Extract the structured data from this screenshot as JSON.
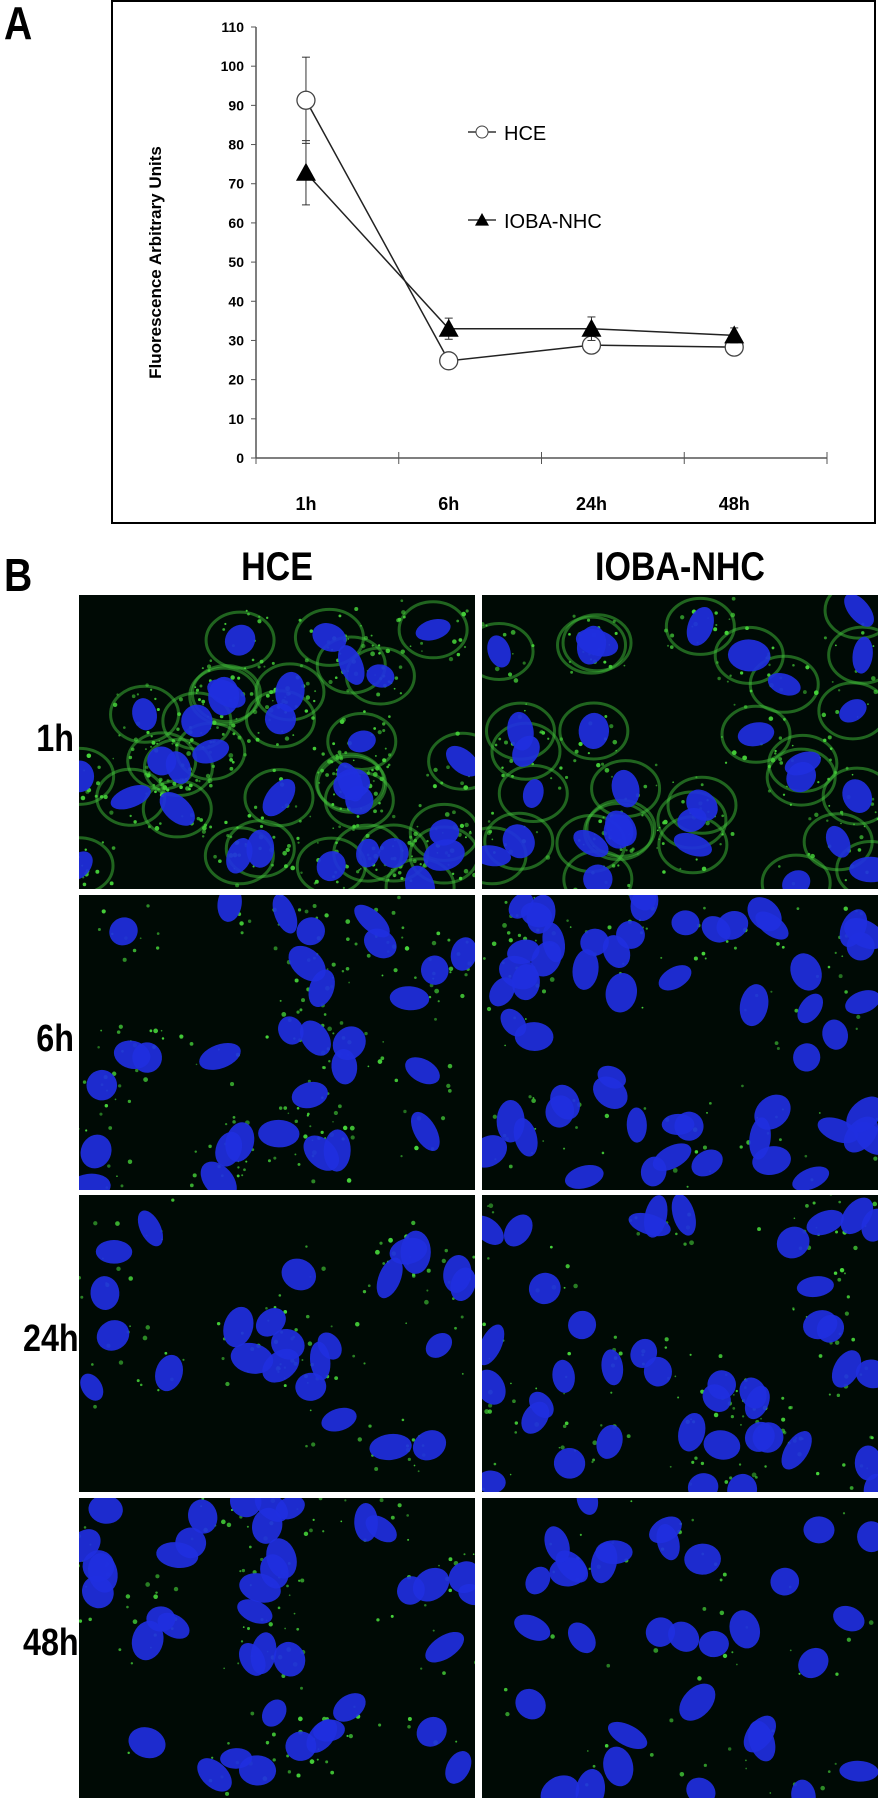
{
  "panel_a": {
    "letter": "A"
  },
  "panel_b": {
    "letter": "B",
    "columns": [
      "HCE",
      "IOBA-NHC"
    ],
    "rows": [
      "1h",
      "6h",
      "24h",
      "48h"
    ]
  },
  "chart_data": {
    "type": "line",
    "categories": [
      "1h",
      "6h",
      "24h",
      "48h"
    ],
    "ylabel": "Fluorescence Arbitrary Units",
    "xlabel": "",
    "ylim": [
      0,
      110
    ],
    "yticks": [
      0,
      10,
      20,
      30,
      40,
      50,
      60,
      70,
      80,
      90,
      100,
      110
    ],
    "grid": false,
    "legend_position": "top-right",
    "series": [
      {
        "name": "HCE",
        "marker": "open-circle",
        "values": [
          91.3,
          24.8,
          28.8,
          28.3
        ],
        "error": [
          11.0,
          0,
          0,
          0
        ]
      },
      {
        "name": "IOBA-NHC",
        "marker": "filled-triangle",
        "values": [
          72.8,
          33.0,
          33.0,
          31.3
        ],
        "error": [
          8.2,
          2.7,
          3.0,
          1.9
        ]
      }
    ]
  }
}
